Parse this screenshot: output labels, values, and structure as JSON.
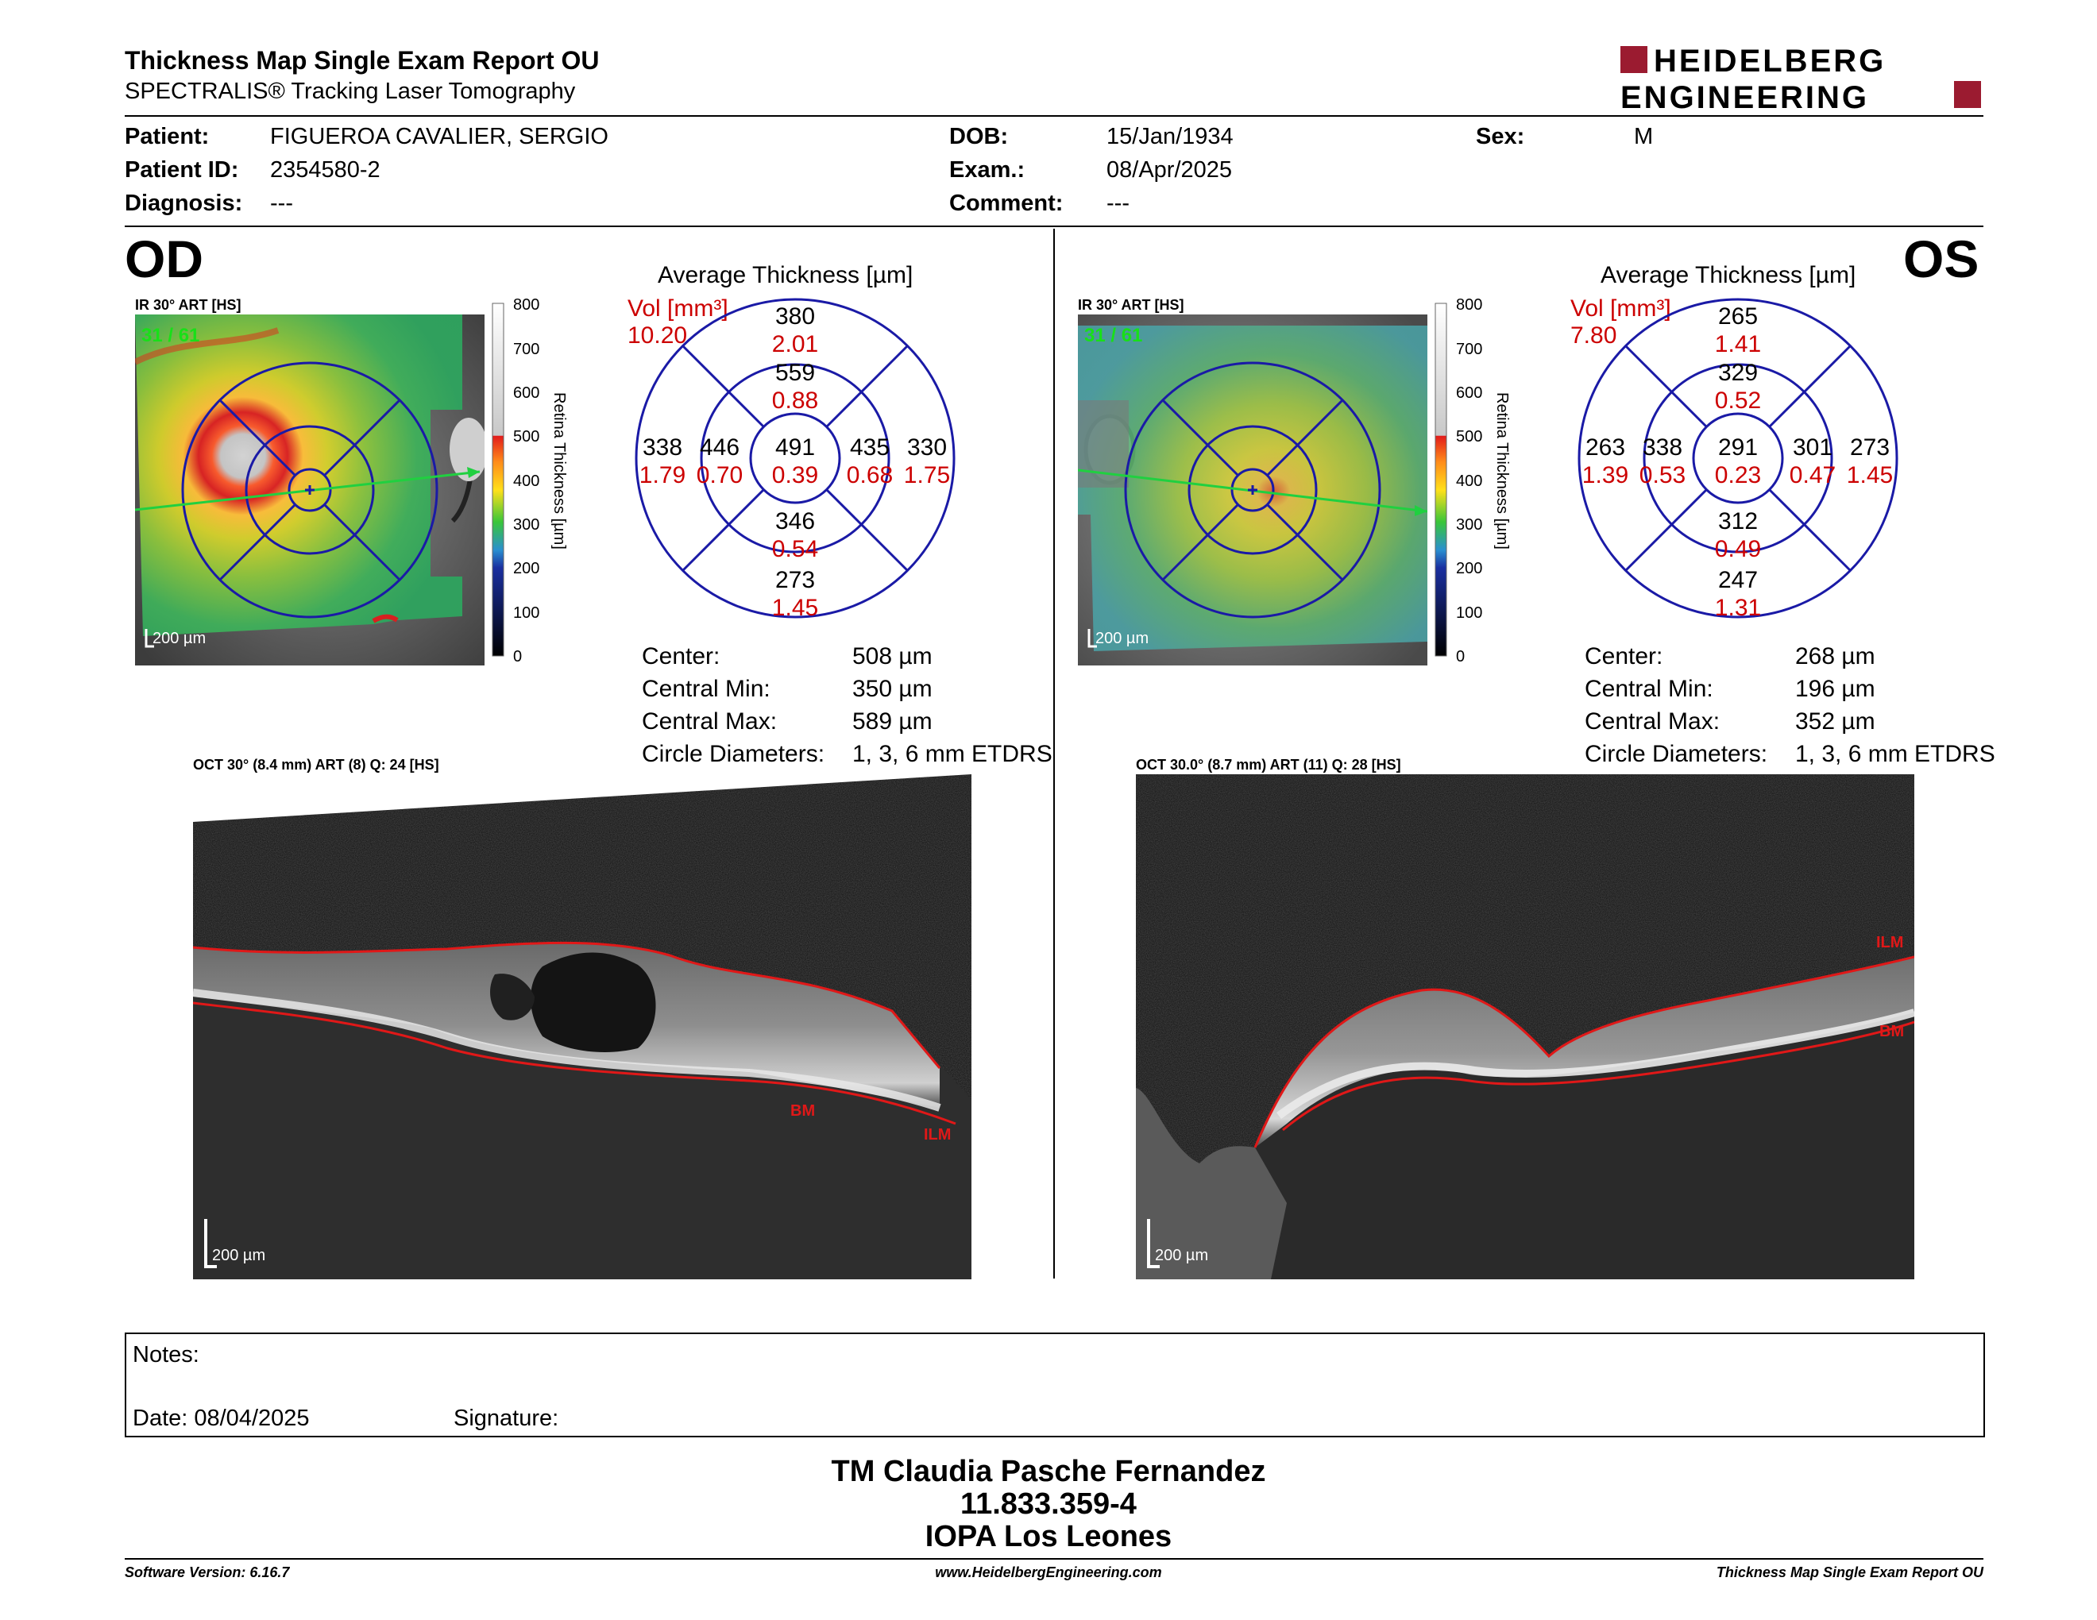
{
  "header": {
    "title": "Thickness Map Single Exam Report OU",
    "subtitle": "SPECTRALIS® Tracking Laser Tomography",
    "logo_line1": "HEIDELBERG",
    "logo_line2": "ENGINEERING"
  },
  "patient": {
    "patient_label": "Patient:",
    "patient_value": "FIGUEROA CAVALIER, SERGIO",
    "id_label": "Patient ID:",
    "id_value": "2354580-2",
    "diagnosis_label": "Diagnosis:",
    "diagnosis_value": "---",
    "dob_label": "DOB:",
    "dob_value": "15/Jan/1934",
    "exam_label": "Exam.:",
    "exam_value": "08/Apr/2025",
    "comment_label": "Comment:",
    "comment_value": "---",
    "sex_label": "Sex:",
    "sex_value": "M"
  },
  "od": {
    "eye": "OD",
    "ir_label": "IR 30° ART [HS]",
    "frame": "31 / 61",
    "scale_bar": "200 µm",
    "colorbar_ticks": [
      "800",
      "700",
      "600",
      "500",
      "400",
      "300",
      "200",
      "100",
      "0"
    ],
    "colorbar_title": "Retina  Thickness [µm]",
    "avg_title": "Average Thickness [µm]",
    "vol_label": "Vol [mm³]",
    "vol_value": "10.20",
    "etdrs": {
      "outer_top": [
        "380",
        "2.01"
      ],
      "inner_top": [
        "559",
        "0.88"
      ],
      "outer_left": [
        "338",
        "1.79"
      ],
      "inner_left": [
        "446",
        "0.70"
      ],
      "center": [
        "491",
        "0.39"
      ],
      "inner_right": [
        "435",
        "0.68"
      ],
      "outer_right": [
        "330",
        "1.75"
      ],
      "inner_bottom": [
        "346",
        "0.54"
      ],
      "outer_bottom": [
        "273",
        "1.45"
      ]
    },
    "center_label": "Center:",
    "center_value": "508 µm",
    "cmin_label": "Central Min:",
    "cmin_value": "350 µm",
    "cmax_label": "Central Max:",
    "cmax_value": "589 µm",
    "circ_label": "Circle Diameters:",
    "circ_value": "1, 3, 6 mm ETDRS",
    "oct_label": "OCT 30° (8.4 mm) ART (8) Q: 24 [HS]",
    "oct_scale": "200 µm",
    "layer_bm": "BM",
    "layer_ilm": "ILM"
  },
  "os": {
    "eye": "OS",
    "ir_label": "IR 30° ART [HS]",
    "frame": "31 / 61",
    "scale_bar": "200 µm",
    "colorbar_ticks": [
      "800",
      "700",
      "600",
      "500",
      "400",
      "300",
      "200",
      "100",
      "0"
    ],
    "colorbar_title": "Retina  Thickness [µm]",
    "avg_title": "Average Thickness [µm]",
    "vol_label": "Vol [mm³]",
    "vol_value": "7.80",
    "etdrs": {
      "outer_top": [
        "265",
        "1.41"
      ],
      "inner_top": [
        "329",
        "0.52"
      ],
      "outer_left": [
        "263",
        "1.39"
      ],
      "inner_left": [
        "338",
        "0.53"
      ],
      "center": [
        "291",
        "0.23"
      ],
      "inner_right": [
        "301",
        "0.47"
      ],
      "outer_right": [
        "273",
        "1.45"
      ],
      "inner_bottom": [
        "312",
        "0.49"
      ],
      "outer_bottom": [
        "247",
        "1.31"
      ]
    },
    "center_label": "Center:",
    "center_value": "268 µm",
    "cmin_label": "Central Min:",
    "cmin_value": "196 µm",
    "cmax_label": "Central Max:",
    "cmax_value": "352 µm",
    "circ_label": "Circle Diameters:",
    "circ_value": "1, 3, 6 mm ETDRS",
    "oct_label": "OCT 30.0° (8.7 mm) ART (11) Q: 28 [HS]",
    "oct_scale": "200 µm",
    "layer_bm": "BM",
    "layer_ilm": "ILM"
  },
  "notes": {
    "notes_label": "Notes:",
    "date_label": "Date: 08/04/2025",
    "signature_label": "Signature:"
  },
  "signer": {
    "name": "TM Claudia Pasche Fernandez",
    "id": "11.833.359-4",
    "place": "IOPA Los Leones"
  },
  "footer": {
    "software": "Software Version: 6.16.7",
    "url": "www.HeidelbergEngineering.com",
    "report": "Thickness Map Single Exam Report OU"
  },
  "colors": {
    "value_red": "#cc0000",
    "grid_blue": "#1a1aa6",
    "logo_red": "#9b1b30"
  }
}
